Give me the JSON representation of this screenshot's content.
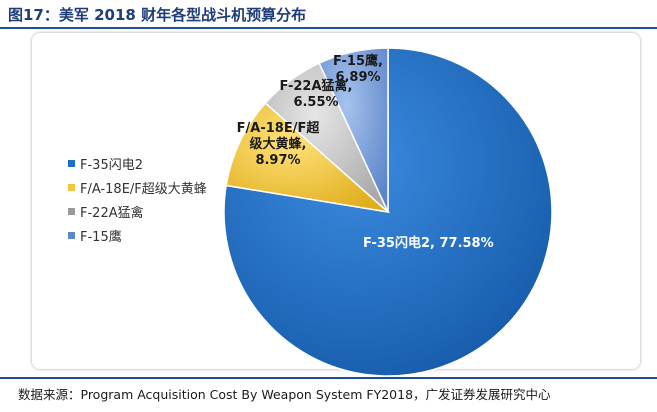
{
  "figure": {
    "title": "图17：美军 2018 财年各型战斗机预算分布",
    "source": "数据来源：Program Acquisition Cost By Weapon System FY2018，广发证券发展研究中心"
  },
  "chart_data": {
    "type": "pie",
    "title": "图17：美军 2018 财年各型战斗机预算分布",
    "unit": "%",
    "legend_position": "left",
    "slices": [
      {
        "name": "F-35闪电2",
        "value": 77.58,
        "label_text": "F-35闪电2, 77.58%",
        "color": "#1f6fc5"
      },
      {
        "name": "F/A-18E/F超级大黄蜂",
        "value": 8.97,
        "label_text": "F/A-18E/F超级大黄蜂, 8.97%",
        "color": "#f2c73e"
      },
      {
        "name": "F-22A猛禽",
        "value": 6.55,
        "label_text": "F-22A猛禽, 6.55%",
        "color": "#c9c9c9"
      },
      {
        "name": "F-15鹰",
        "value": 6.89,
        "label_text": "F-15鹰, 6.89%",
        "color": "#7ea3de"
      }
    ]
  }
}
